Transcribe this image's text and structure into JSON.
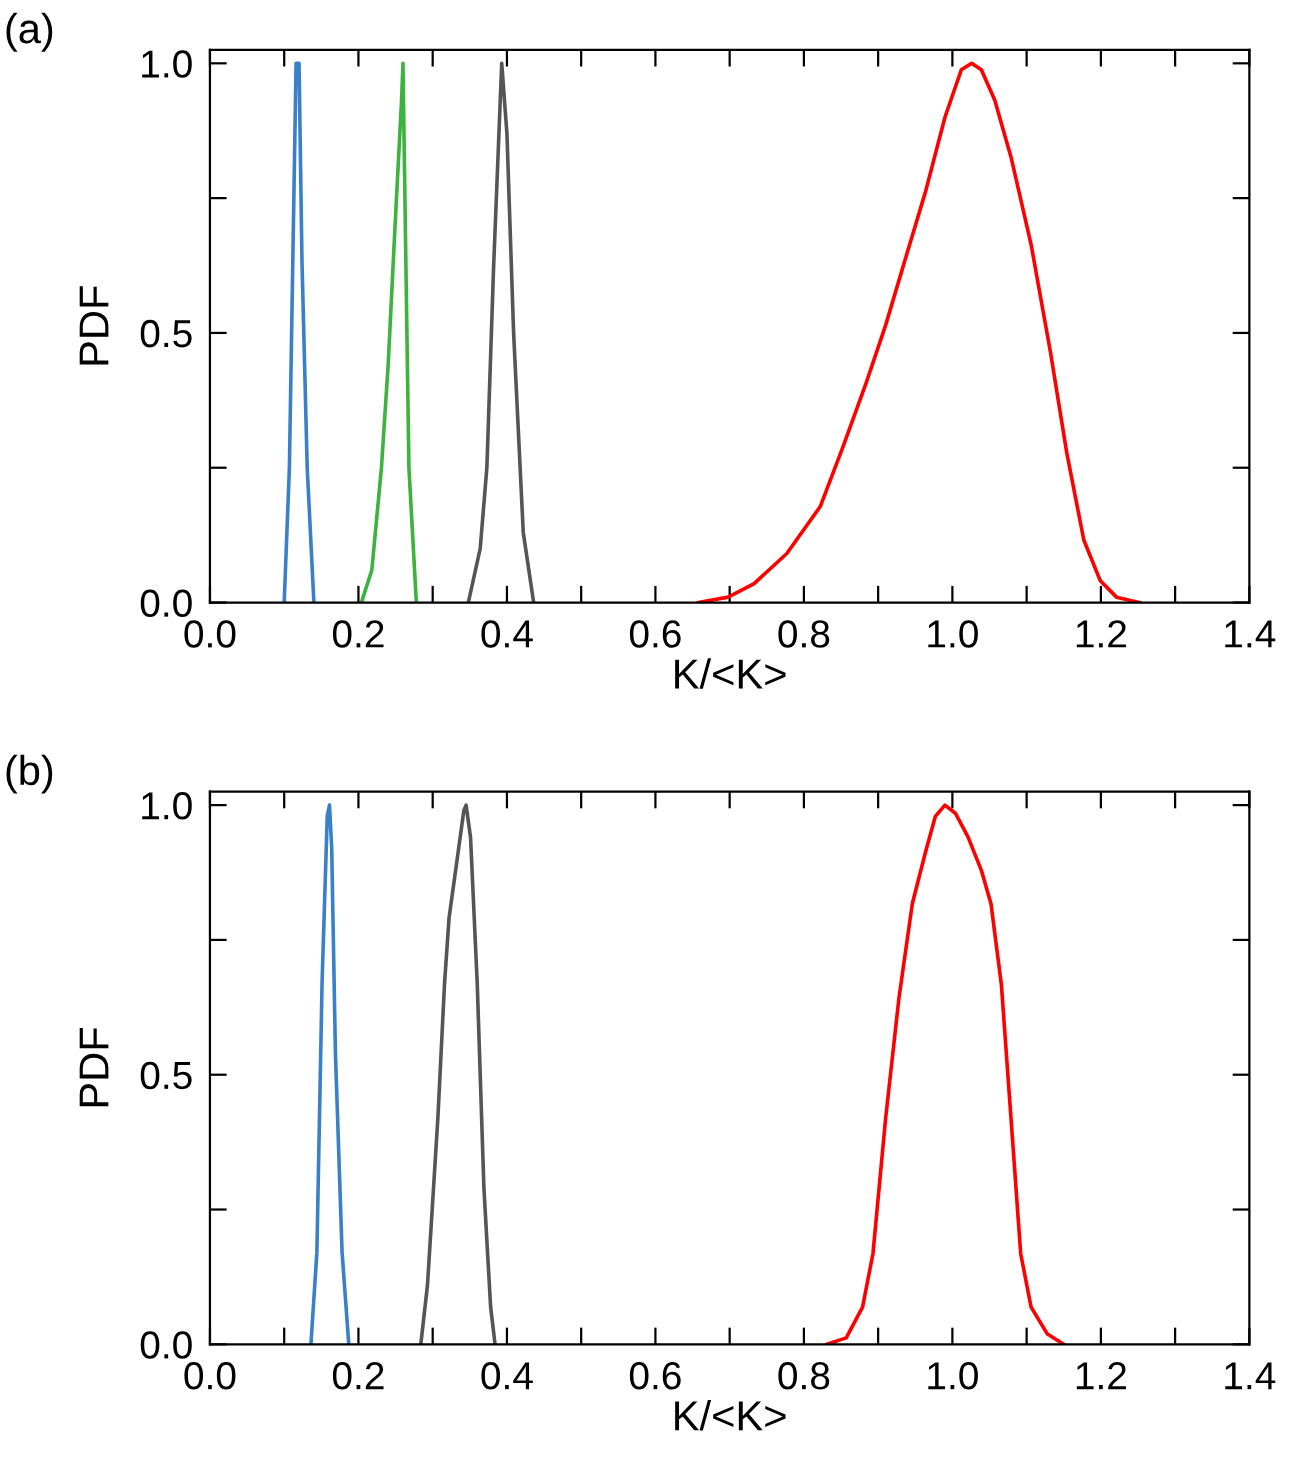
{
  "chart_data": [
    {
      "type": "line",
      "annotations": [
        "(a)"
      ],
      "xlabel": "K/<K>",
      "ylabel": "PDF",
      "xlim": [
        0,
        1.4
      ],
      "ylim": [
        0,
        1.025
      ],
      "grid": false,
      "xticks": [
        {
          "value": 0,
          "label": "0.0"
        },
        {
          "value": 0.1,
          "label": null
        },
        {
          "value": 0.2,
          "label": "0.2"
        },
        {
          "value": 0.3,
          "label": null
        },
        {
          "value": 0.4,
          "label": "0.4"
        },
        {
          "value": 0.5,
          "label": null
        },
        {
          "value": 0.6,
          "label": "0.6"
        },
        {
          "value": 0.7,
          "label": null
        },
        {
          "value": 0.8,
          "label": "0.8"
        },
        {
          "value": 0.9,
          "label": null
        },
        {
          "value": 1.0,
          "label": "1.0"
        },
        {
          "value": 1.1,
          "label": null
        },
        {
          "value": 1.2,
          "label": "1.2"
        },
        {
          "value": 1.3,
          "label": null
        },
        {
          "value": 1.4,
          "label": "1.4"
        }
      ],
      "yticks": [
        {
          "value": 0,
          "label": "0.0"
        },
        {
          "value": 0.25,
          "label": null
        },
        {
          "value": 0.5,
          "label": "0.5"
        },
        {
          "value": 0.75,
          "label": null
        },
        {
          "value": 1.0,
          "label": "1.0"
        }
      ],
      "series": [
        {
          "color": "#3a80c8",
          "x": [
            0.1,
            0.107,
            0.113,
            0.116,
            0.12,
            0.124,
            0.131,
            0.14
          ],
          "values": [
            0,
            0.25,
            0.75,
            1.0,
            1.0,
            0.63,
            0.25,
            0
          ]
        },
        {
          "color": "#3cb33c",
          "x": [
            0.204,
            0.218,
            0.231,
            0.24,
            0.249,
            0.258,
            0.26,
            0.264,
            0.268,
            0.278
          ],
          "values": [
            0,
            0.06,
            0.25,
            0.44,
            0.69,
            0.93,
            1.0,
            0.62,
            0.25,
            0
          ]
        },
        {
          "color": "#555555",
          "x": [
            0.348,
            0.364,
            0.373,
            0.382,
            0.393,
            0.4,
            0.409,
            0.422,
            0.436
          ],
          "values": [
            0,
            0.1,
            0.25,
            0.62,
            1.0,
            0.87,
            0.5,
            0.13,
            0
          ]
        },
        {
          "color": "#ff0000",
          "x": [
            0.658,
            0.698,
            0.733,
            0.777,
            0.822,
            0.853,
            0.884,
            0.91,
            0.937,
            0.964,
            0.99,
            1.012,
            1.026,
            1.039,
            1.057,
            1.079,
            1.106,
            1.132,
            1.154,
            1.177,
            1.199,
            1.221,
            1.252
          ],
          "values": [
            0,
            0.01,
            0.035,
            0.091,
            0.178,
            0.29,
            0.408,
            0.514,
            0.639,
            0.763,
            0.9,
            0.988,
            1.0,
            0.988,
            0.932,
            0.826,
            0.664,
            0.465,
            0.278,
            0.116,
            0.041,
            0.01,
            0
          ]
        }
      ]
    },
    {
      "type": "line",
      "annotations": [
        "(b)"
      ],
      "xlabel": "K/<K>",
      "ylabel": "PDF",
      "xlim": [
        0,
        1.4
      ],
      "ylim": [
        0,
        1.025
      ],
      "grid": false,
      "xticks": [
        {
          "value": 0,
          "label": "0.0"
        },
        {
          "value": 0.1,
          "label": null
        },
        {
          "value": 0.2,
          "label": "0.2"
        },
        {
          "value": 0.3,
          "label": null
        },
        {
          "value": 0.4,
          "label": "0.4"
        },
        {
          "value": 0.5,
          "label": null
        },
        {
          "value": 0.6,
          "label": "0.6"
        },
        {
          "value": 0.7,
          "label": null
        },
        {
          "value": 0.8,
          "label": "0.8"
        },
        {
          "value": 0.9,
          "label": null
        },
        {
          "value": 1.0,
          "label": "1.0"
        },
        {
          "value": 1.1,
          "label": null
        },
        {
          "value": 1.2,
          "label": "1.2"
        },
        {
          "value": 1.3,
          "label": null
        },
        {
          "value": 1.4,
          "label": "1.4"
        }
      ],
      "yticks": [
        {
          "value": 0,
          "label": "0.0"
        },
        {
          "value": 0.25,
          "label": null
        },
        {
          "value": 0.5,
          "label": "0.5"
        },
        {
          "value": 0.75,
          "label": null
        },
        {
          "value": 1.0,
          "label": "1.0"
        }
      ],
      "series": [
        {
          "color": "#3a80c8",
          "x": [
            0.136,
            0.144,
            0.151,
            0.158,
            0.161,
            0.164,
            0.169,
            0.178,
            0.187
          ],
          "values": [
            0,
            0.17,
            0.67,
            0.98,
            1.0,
            0.92,
            0.54,
            0.17,
            0
          ]
        },
        {
          "color": "#555555",
          "x": [
            0.284,
            0.293,
            0.307,
            0.316,
            0.322,
            0.332,
            0.342,
            0.345,
            0.351,
            0.36,
            0.369,
            0.378,
            0.384
          ],
          "values": [
            0,
            0.11,
            0.42,
            0.67,
            0.79,
            0.89,
            0.99,
            1.0,
            0.94,
            0.67,
            0.29,
            0.07,
            0
          ]
        },
        {
          "color": "#ff0000",
          "x": [
            0.831,
            0.857,
            0.879,
            0.893,
            0.91,
            0.928,
            0.946,
            0.964,
            0.977,
            0.99,
            1.004,
            1.021,
            1.039,
            1.052,
            1.066,
            1.079,
            1.092,
            1.106,
            1.128,
            1.15
          ],
          "values": [
            0,
            0.012,
            0.069,
            0.168,
            0.418,
            0.642,
            0.817,
            0.914,
            0.979,
            1.0,
            0.985,
            0.941,
            0.879,
            0.817,
            0.667,
            0.418,
            0.168,
            0.069,
            0.019,
            0
          ]
        }
      ]
    }
  ]
}
